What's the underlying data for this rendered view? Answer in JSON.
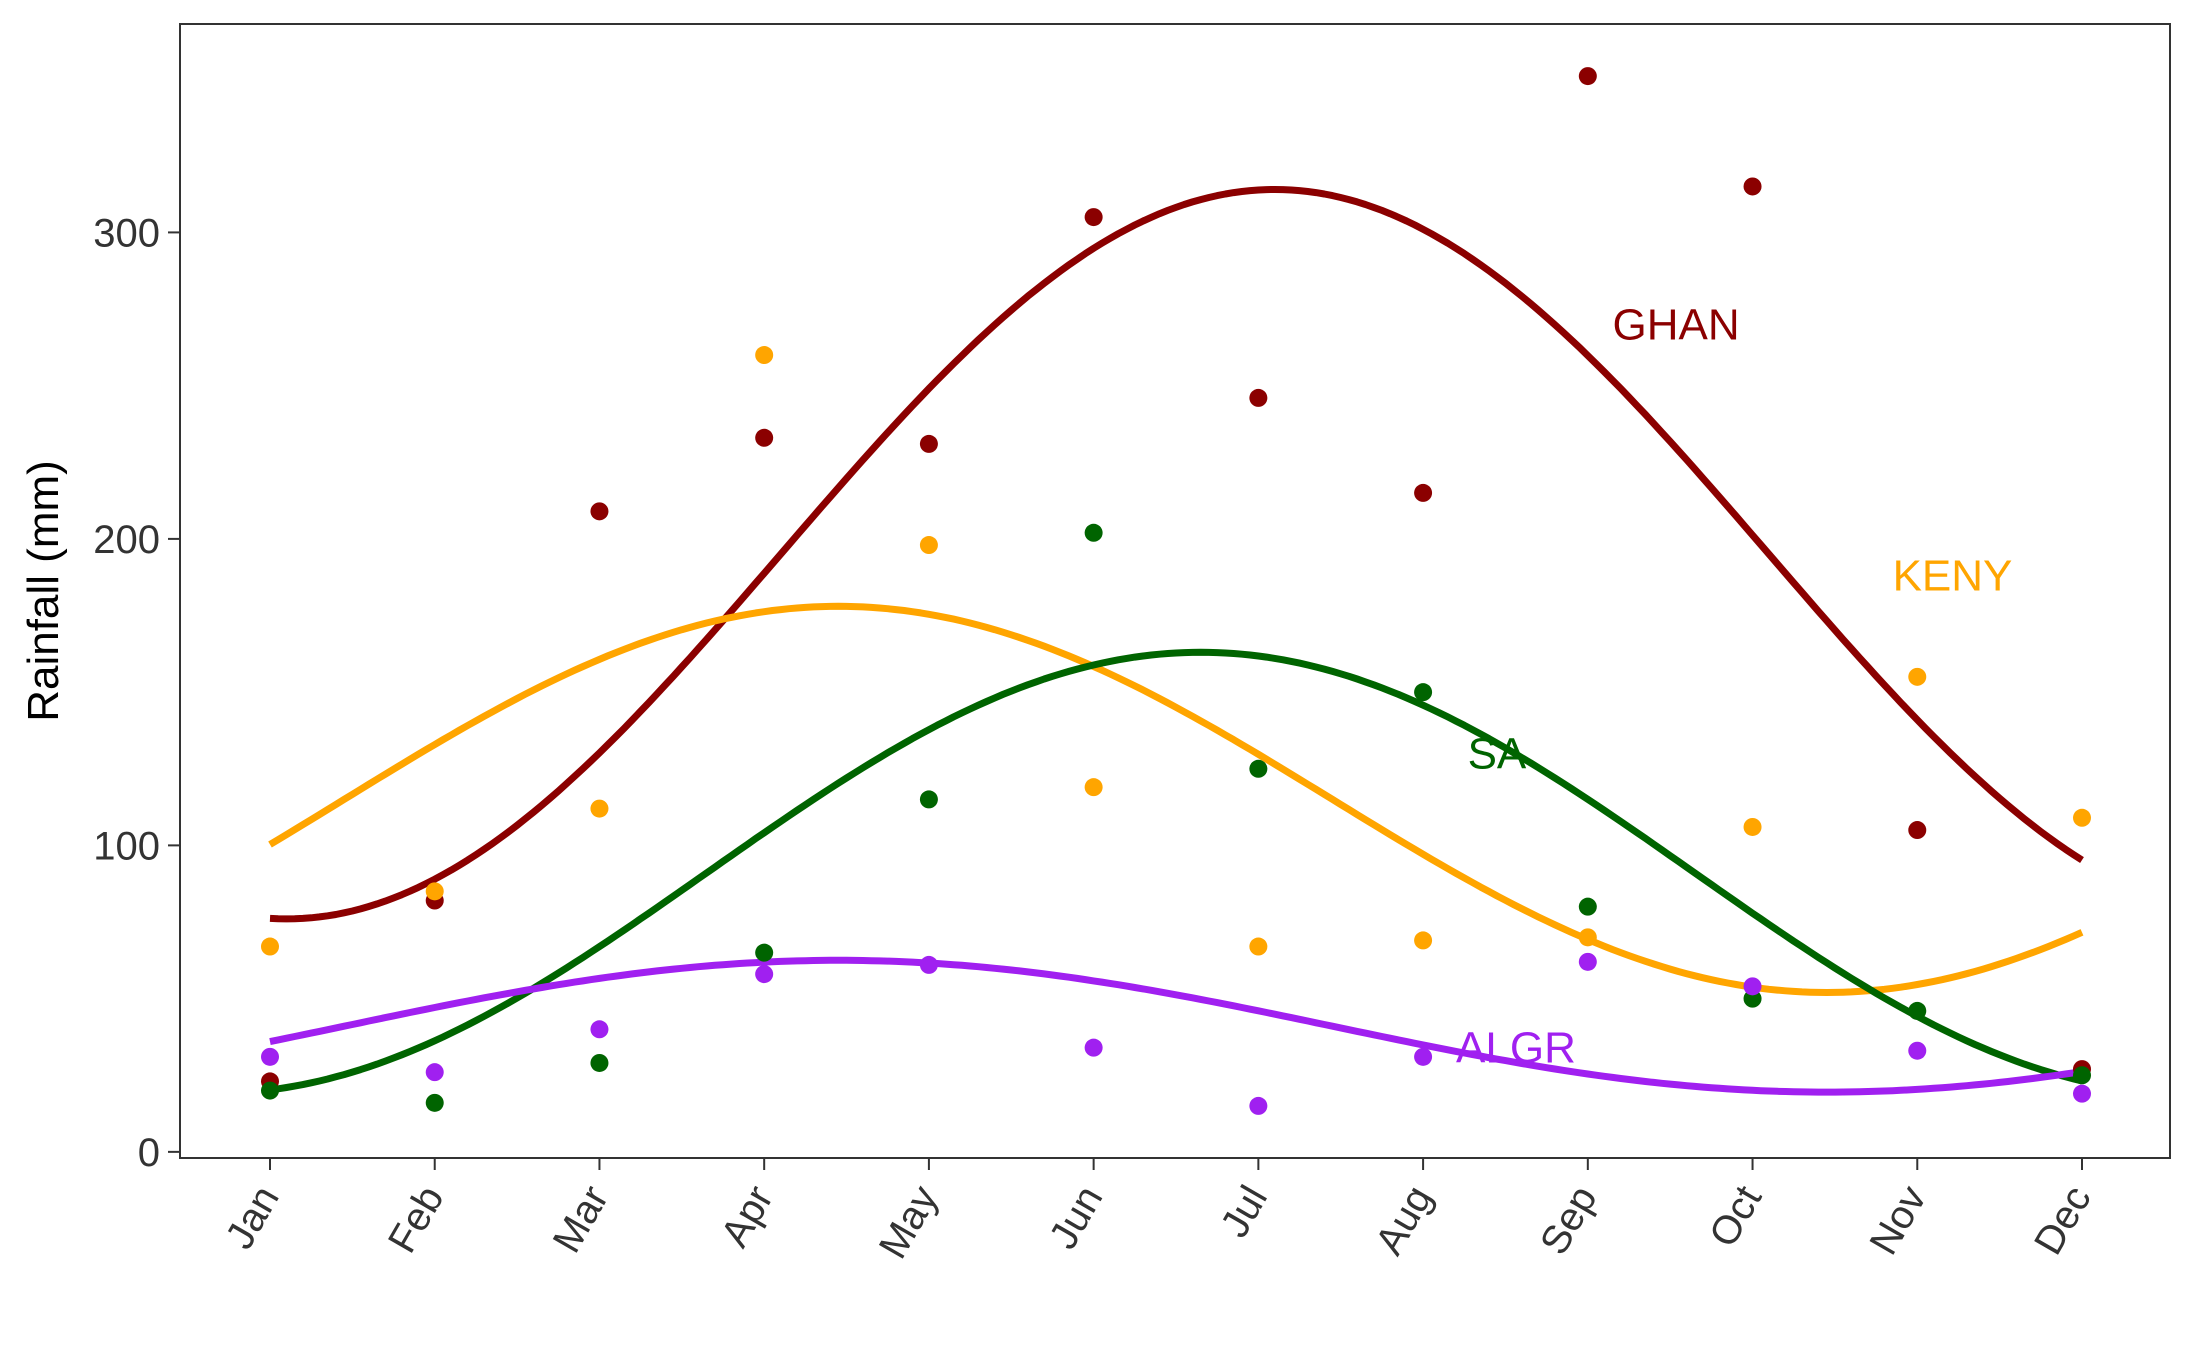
{
  "chart_data": {
    "type": "scatter",
    "title": "",
    "xlabel": "",
    "ylabel": "Rainfall (mm)",
    "categories": [
      "Jan",
      "Feb",
      "Mar",
      "Apr",
      "May",
      "Jun",
      "Jul",
      "Aug",
      "Sep",
      "Oct",
      "Nov",
      "Dec"
    ],
    "ylim": [
      -2,
      368
    ],
    "yticks": [
      "0",
      "100",
      "200",
      "300"
    ],
    "grid": false,
    "legend": "none",
    "series": [
      {
        "name": "GHAN",
        "color": "#8B0000",
        "values": [
          23,
          82,
          209,
          233,
          231,
          305,
          246,
          215,
          351,
          315,
          105,
          27
        ],
        "smooth": {
          "mean": 195,
          "amplitude": 119,
          "peak_month": 6.1
        }
      },
      {
        "name": "KENY",
        "color": "#FFA500",
        "values": [
          67,
          85,
          112,
          260,
          198,
          119,
          67,
          69,
          70,
          106,
          155,
          109
        ],
        "smooth": {
          "mean": 115,
          "amplitude": 63,
          "peak_month": 3.45
        }
      },
      {
        "name": "SA",
        "color": "#006400",
        "values": [
          20,
          16,
          29,
          65,
          115,
          202,
          125,
          150,
          80,
          50,
          46,
          25
        ],
        "smooth": {
          "mean": 91,
          "amplitude": 72,
          "peak_month": 5.65
        }
      },
      {
        "name": "ALGR",
        "color": "#A020F0",
        "values": [
          31,
          26,
          40,
          58,
          61,
          34,
          15,
          31,
          62,
          54,
          33,
          19
        ],
        "smooth": {
          "mean": 41,
          "amplitude": 21.5,
          "peak_month": 3.45
        }
      }
    ]
  }
}
